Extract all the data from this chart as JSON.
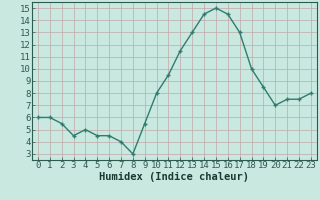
{
  "x": [
    0,
    1,
    2,
    3,
    4,
    5,
    6,
    7,
    8,
    9,
    10,
    11,
    12,
    13,
    14,
    15,
    16,
    17,
    18,
    19,
    20,
    21,
    22,
    23
  ],
  "y": [
    6,
    6,
    5.5,
    4.5,
    5,
    4.5,
    4.5,
    4,
    3,
    5.5,
    8,
    9.5,
    11.5,
    13,
    14.5,
    15,
    14.5,
    13,
    10,
    8.5,
    7,
    7.5,
    7.5,
    8
  ],
  "line_color": "#2e7d6e",
  "marker": "+",
  "marker_color": "#2e7d6e",
  "bg_color": "#c8e8e0",
  "grid_color": "#c0a8a8",
  "xlabel": "Humidex (Indice chaleur)",
  "xlim": [
    -0.5,
    23.5
  ],
  "ylim": [
    2.5,
    15.5
  ],
  "yticks": [
    3,
    4,
    5,
    6,
    7,
    8,
    9,
    10,
    11,
    12,
    13,
    14,
    15
  ],
  "xticks": [
    0,
    1,
    2,
    3,
    4,
    5,
    6,
    7,
    8,
    9,
    10,
    11,
    12,
    13,
    14,
    15,
    16,
    17,
    18,
    19,
    20,
    21,
    22,
    23
  ],
  "xlabel_fontsize": 7.5,
  "tick_fontsize": 6.5,
  "line_width": 1.0,
  "marker_size": 3.5
}
